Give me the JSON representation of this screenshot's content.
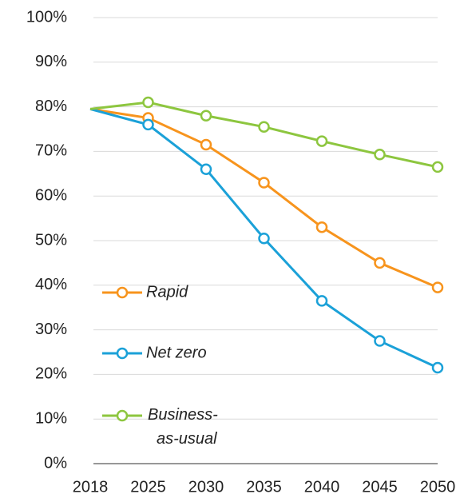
{
  "chart_data": {
    "type": "line",
    "categories": [
      "2018",
      "2025",
      "2030",
      "2035",
      "2040",
      "2045",
      "2050"
    ],
    "series": [
      {
        "name": "Rapid",
        "color": "#f7941d",
        "values": [
          79.5,
          77.5,
          71.5,
          63,
          53,
          45,
          39.5
        ]
      },
      {
        "name": "Net zero",
        "color": "#1ba1d8",
        "values": [
          79.5,
          76,
          66,
          50.5,
          36.5,
          27.5,
          21.5
        ]
      },
      {
        "name": "Business-as-usual",
        "color": "#8dc63f",
        "values": [
          79.5,
          81,
          78,
          75.5,
          72.3,
          69.3,
          66.5
        ]
      }
    ],
    "ylim": [
      0,
      100
    ],
    "yticks": [
      {
        "value": 0,
        "label": "0%"
      },
      {
        "value": 10,
        "label": "10%"
      },
      {
        "value": 20,
        "label": "20%"
      },
      {
        "value": 30,
        "label": "30%"
      },
      {
        "value": 40,
        "label": "40%"
      },
      {
        "value": 50,
        "label": "50%"
      },
      {
        "value": 60,
        "label": "60%"
      },
      {
        "value": 70,
        "label": "70%"
      },
      {
        "value": 80,
        "label": "80%"
      },
      {
        "value": 90,
        "label": "90%"
      },
      {
        "value": 100,
        "label": "100%"
      }
    ],
    "grid": true,
    "legend": "left"
  }
}
